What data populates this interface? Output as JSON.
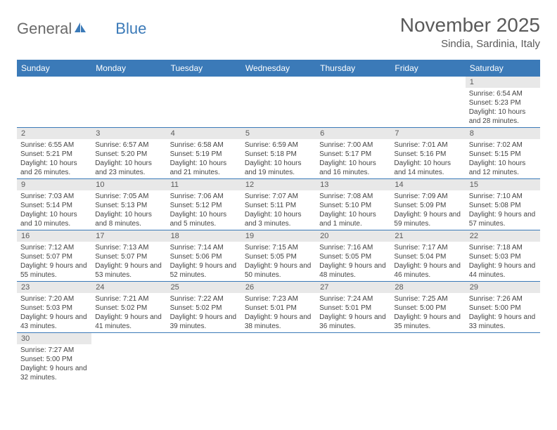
{
  "logo": {
    "text1": "General",
    "text2": "Blue",
    "color1": "#6a6a6a",
    "color2": "#3b7ab8"
  },
  "title": "November 2025",
  "location": "Sindia, Sardinia, Italy",
  "header_bg": "#3b7ab8",
  "header_fg": "#ffffff",
  "daynum_bg": "#e8e8e8",
  "border_color": "#3b7ab8",
  "day_headers": [
    "Sunday",
    "Monday",
    "Tuesday",
    "Wednesday",
    "Thursday",
    "Friday",
    "Saturday"
  ],
  "weeks": [
    [
      {
        "n": "",
        "sr": "",
        "ss": "",
        "dl": ""
      },
      {
        "n": "",
        "sr": "",
        "ss": "",
        "dl": ""
      },
      {
        "n": "",
        "sr": "",
        "ss": "",
        "dl": ""
      },
      {
        "n": "",
        "sr": "",
        "ss": "",
        "dl": ""
      },
      {
        "n": "",
        "sr": "",
        "ss": "",
        "dl": ""
      },
      {
        "n": "",
        "sr": "",
        "ss": "",
        "dl": ""
      },
      {
        "n": "1",
        "sr": "Sunrise: 6:54 AM",
        "ss": "Sunset: 5:23 PM",
        "dl": "Daylight: 10 hours and 28 minutes."
      }
    ],
    [
      {
        "n": "2",
        "sr": "Sunrise: 6:55 AM",
        "ss": "Sunset: 5:21 PM",
        "dl": "Daylight: 10 hours and 26 minutes."
      },
      {
        "n": "3",
        "sr": "Sunrise: 6:57 AM",
        "ss": "Sunset: 5:20 PM",
        "dl": "Daylight: 10 hours and 23 minutes."
      },
      {
        "n": "4",
        "sr": "Sunrise: 6:58 AM",
        "ss": "Sunset: 5:19 PM",
        "dl": "Daylight: 10 hours and 21 minutes."
      },
      {
        "n": "5",
        "sr": "Sunrise: 6:59 AM",
        "ss": "Sunset: 5:18 PM",
        "dl": "Daylight: 10 hours and 19 minutes."
      },
      {
        "n": "6",
        "sr": "Sunrise: 7:00 AM",
        "ss": "Sunset: 5:17 PM",
        "dl": "Daylight: 10 hours and 16 minutes."
      },
      {
        "n": "7",
        "sr": "Sunrise: 7:01 AM",
        "ss": "Sunset: 5:16 PM",
        "dl": "Daylight: 10 hours and 14 minutes."
      },
      {
        "n": "8",
        "sr": "Sunrise: 7:02 AM",
        "ss": "Sunset: 5:15 PM",
        "dl": "Daylight: 10 hours and 12 minutes."
      }
    ],
    [
      {
        "n": "9",
        "sr": "Sunrise: 7:03 AM",
        "ss": "Sunset: 5:14 PM",
        "dl": "Daylight: 10 hours and 10 minutes."
      },
      {
        "n": "10",
        "sr": "Sunrise: 7:05 AM",
        "ss": "Sunset: 5:13 PM",
        "dl": "Daylight: 10 hours and 8 minutes."
      },
      {
        "n": "11",
        "sr": "Sunrise: 7:06 AM",
        "ss": "Sunset: 5:12 PM",
        "dl": "Daylight: 10 hours and 5 minutes."
      },
      {
        "n": "12",
        "sr": "Sunrise: 7:07 AM",
        "ss": "Sunset: 5:11 PM",
        "dl": "Daylight: 10 hours and 3 minutes."
      },
      {
        "n": "13",
        "sr": "Sunrise: 7:08 AM",
        "ss": "Sunset: 5:10 PM",
        "dl": "Daylight: 10 hours and 1 minute."
      },
      {
        "n": "14",
        "sr": "Sunrise: 7:09 AM",
        "ss": "Sunset: 5:09 PM",
        "dl": "Daylight: 9 hours and 59 minutes."
      },
      {
        "n": "15",
        "sr": "Sunrise: 7:10 AM",
        "ss": "Sunset: 5:08 PM",
        "dl": "Daylight: 9 hours and 57 minutes."
      }
    ],
    [
      {
        "n": "16",
        "sr": "Sunrise: 7:12 AM",
        "ss": "Sunset: 5:07 PM",
        "dl": "Daylight: 9 hours and 55 minutes."
      },
      {
        "n": "17",
        "sr": "Sunrise: 7:13 AM",
        "ss": "Sunset: 5:07 PM",
        "dl": "Daylight: 9 hours and 53 minutes."
      },
      {
        "n": "18",
        "sr": "Sunrise: 7:14 AM",
        "ss": "Sunset: 5:06 PM",
        "dl": "Daylight: 9 hours and 52 minutes."
      },
      {
        "n": "19",
        "sr": "Sunrise: 7:15 AM",
        "ss": "Sunset: 5:05 PM",
        "dl": "Daylight: 9 hours and 50 minutes."
      },
      {
        "n": "20",
        "sr": "Sunrise: 7:16 AM",
        "ss": "Sunset: 5:05 PM",
        "dl": "Daylight: 9 hours and 48 minutes."
      },
      {
        "n": "21",
        "sr": "Sunrise: 7:17 AM",
        "ss": "Sunset: 5:04 PM",
        "dl": "Daylight: 9 hours and 46 minutes."
      },
      {
        "n": "22",
        "sr": "Sunrise: 7:18 AM",
        "ss": "Sunset: 5:03 PM",
        "dl": "Daylight: 9 hours and 44 minutes."
      }
    ],
    [
      {
        "n": "23",
        "sr": "Sunrise: 7:20 AM",
        "ss": "Sunset: 5:03 PM",
        "dl": "Daylight: 9 hours and 43 minutes."
      },
      {
        "n": "24",
        "sr": "Sunrise: 7:21 AM",
        "ss": "Sunset: 5:02 PM",
        "dl": "Daylight: 9 hours and 41 minutes."
      },
      {
        "n": "25",
        "sr": "Sunrise: 7:22 AM",
        "ss": "Sunset: 5:02 PM",
        "dl": "Daylight: 9 hours and 39 minutes."
      },
      {
        "n": "26",
        "sr": "Sunrise: 7:23 AM",
        "ss": "Sunset: 5:01 PM",
        "dl": "Daylight: 9 hours and 38 minutes."
      },
      {
        "n": "27",
        "sr": "Sunrise: 7:24 AM",
        "ss": "Sunset: 5:01 PM",
        "dl": "Daylight: 9 hours and 36 minutes."
      },
      {
        "n": "28",
        "sr": "Sunrise: 7:25 AM",
        "ss": "Sunset: 5:00 PM",
        "dl": "Daylight: 9 hours and 35 minutes."
      },
      {
        "n": "29",
        "sr": "Sunrise: 7:26 AM",
        "ss": "Sunset: 5:00 PM",
        "dl": "Daylight: 9 hours and 33 minutes."
      }
    ],
    [
      {
        "n": "30",
        "sr": "Sunrise: 7:27 AM",
        "ss": "Sunset: 5:00 PM",
        "dl": "Daylight: 9 hours and 32 minutes."
      },
      {
        "n": "",
        "sr": "",
        "ss": "",
        "dl": ""
      },
      {
        "n": "",
        "sr": "",
        "ss": "",
        "dl": ""
      },
      {
        "n": "",
        "sr": "",
        "ss": "",
        "dl": ""
      },
      {
        "n": "",
        "sr": "",
        "ss": "",
        "dl": ""
      },
      {
        "n": "",
        "sr": "",
        "ss": "",
        "dl": ""
      },
      {
        "n": "",
        "sr": "",
        "ss": "",
        "dl": ""
      }
    ]
  ]
}
